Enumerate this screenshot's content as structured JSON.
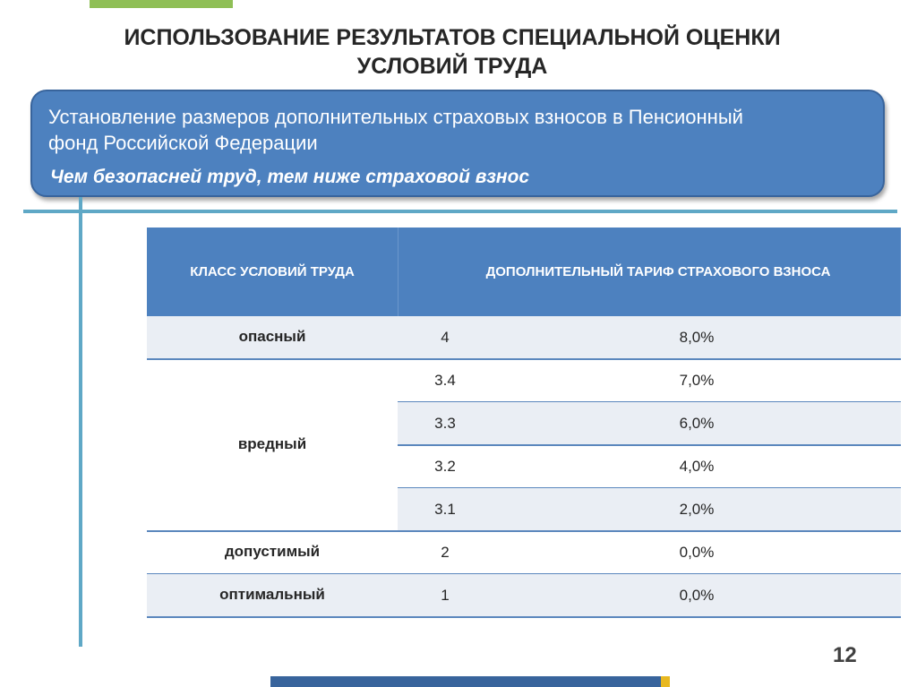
{
  "title": {
    "line1": "ИСПОЛЬЗОВАНИЕ РЕЗУЛЬТАТОВ СПЕЦИАЛЬНОЙ ОЦЕНКИ",
    "line2": "УСЛОВИЙ ТРУДА"
  },
  "banner": {
    "line1": "Установление размеров дополнительных страховых взносов в Пенсионный",
    "line2": "фонд Российской Федерации",
    "emphasis": "Чем безопасней труд, тем ниже страховой взнос"
  },
  "table": {
    "headers": [
      "КЛАСС УСЛОВИЙ ТРУДА",
      "ДОПОЛНИТЕЛЬНЫЙ ТАРИФ СТРАХОВОГО ВЗНОСА"
    ],
    "groups": [
      {
        "class": "опасный",
        "rows": [
          {
            "subclass": "4",
            "tariff": "8,0%"
          }
        ]
      },
      {
        "class": "вредный",
        "rows": [
          {
            "subclass": "3.4",
            "tariff": "7,0%"
          },
          {
            "subclass": "3.3",
            "tariff": "6,0%"
          },
          {
            "subclass": "3.2",
            "tariff": "4,0%"
          },
          {
            "subclass": "3.1",
            "tariff": "2,0%"
          }
        ]
      },
      {
        "class": "допустимый",
        "rows": [
          {
            "subclass": "2",
            "tariff": "0,0%"
          }
        ]
      },
      {
        "class": "оптимальный",
        "rows": [
          {
            "subclass": "1",
            "tariff": "0,0%"
          }
        ]
      }
    ]
  },
  "page_number": "12",
  "colors": {
    "header_blue": "#4d81bf",
    "accent_teal": "#5fa8c6",
    "top_green": "#8fbf56",
    "footer_yellow": "#e8b820"
  }
}
